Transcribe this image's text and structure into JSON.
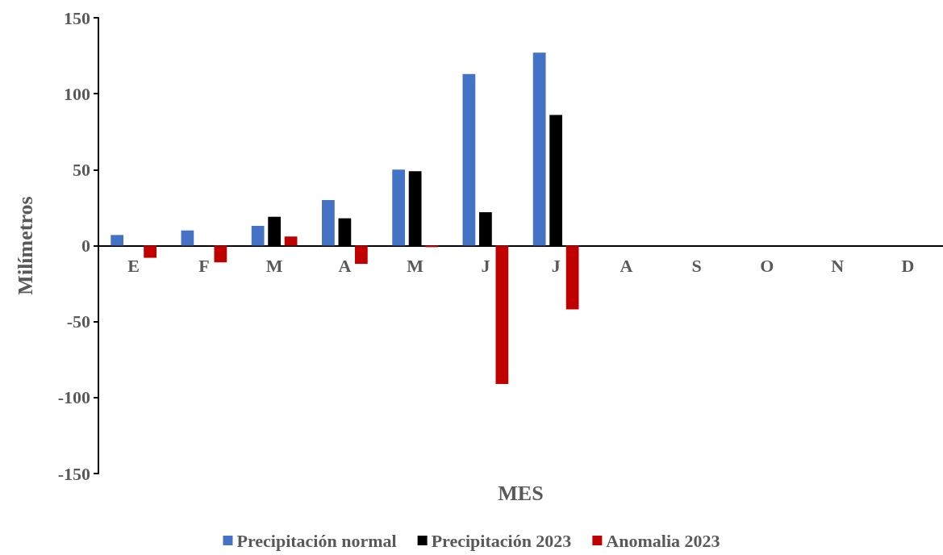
{
  "chart_data": {
    "type": "bar",
    "xlabel": "MES",
    "ylabel": "Milímetros",
    "categories": [
      "E",
      "F",
      "M",
      "A",
      "M",
      "J",
      "J",
      "A",
      "S",
      "O",
      "N",
      "D"
    ],
    "series": [
      {
        "name": "Precipitación normal",
        "color": "#4472c4",
        "values": [
          7,
          10,
          13,
          30,
          50,
          113,
          127,
          null,
          null,
          null,
          null,
          null
        ]
      },
      {
        "name": "Precipitación 2023",
        "color": "#000000",
        "values": [
          null,
          null,
          19,
          18,
          49,
          22,
          86,
          null,
          null,
          null,
          null,
          null
        ]
      },
      {
        "name": "Anomalia 2023",
        "color": "#c00000",
        "values": [
          -8,
          -11,
          6,
          -12,
          -1,
          -91,
          -42,
          null,
          null,
          null,
          null,
          null
        ]
      }
    ],
    "ylim": [
      -150,
      150
    ],
    "yticks": [
      -150,
      -100,
      -50,
      0,
      50,
      100,
      150
    ],
    "grid": false,
    "legend": "bottom"
  }
}
